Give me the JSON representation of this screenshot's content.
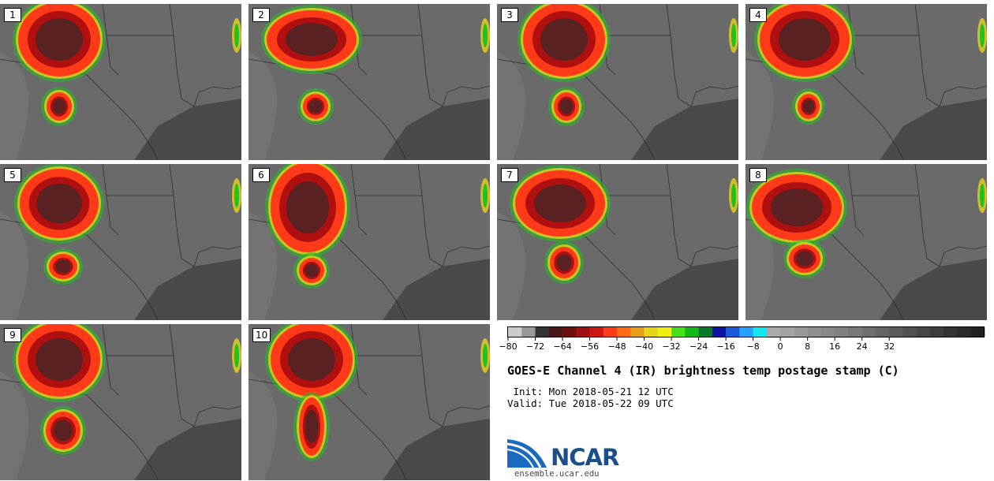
{
  "panels": [
    {
      "label": "1"
    },
    {
      "label": "2"
    },
    {
      "label": "3"
    },
    {
      "label": "4"
    },
    {
      "label": "5"
    },
    {
      "label": "6"
    },
    {
      "label": "7"
    },
    {
      "label": "8"
    },
    {
      "label": "9"
    },
    {
      "label": "10"
    }
  ],
  "colorbar": {
    "colors": [
      "#cccccc",
      "#999999",
      "#333333",
      "#4a1818",
      "#6e0f0f",
      "#a01010",
      "#cc1a12",
      "#ff3a18",
      "#ff6a12",
      "#e8a01a",
      "#e6d41a",
      "#f0f010",
      "#44e01a",
      "#14b814",
      "#0a7a2a",
      "#0a14a0",
      "#1a5adc",
      "#28a0ff",
      "#10e8f0",
      "#aaaaaa",
      "#a4a4a4",
      "#9a9a9a",
      "#909090",
      "#888888",
      "#808080",
      "#787878",
      "#6e6e6e",
      "#646464",
      "#5a5a5a",
      "#505050",
      "#464646",
      "#3c3c3c",
      "#333333",
      "#2a2a2a",
      "#222222"
    ],
    "tick_labels": [
      "−80",
      "−72",
      "−64",
      "−56",
      "−48",
      "−40",
      "−32",
      "−24",
      "−16",
      "−8",
      "0",
      "8",
      "16",
      "24",
      "32"
    ]
  },
  "title": "GOES-E Channel 4 (IR) brightness temp postage stamp (C)",
  "init": " Init: Mon 2018-05-21 12 UTC",
  "valid": "Valid: Tue 2018-05-22 09 UTC",
  "logo": {
    "text": "NCAR",
    "site": "ensemble.ucar.edu"
  }
}
